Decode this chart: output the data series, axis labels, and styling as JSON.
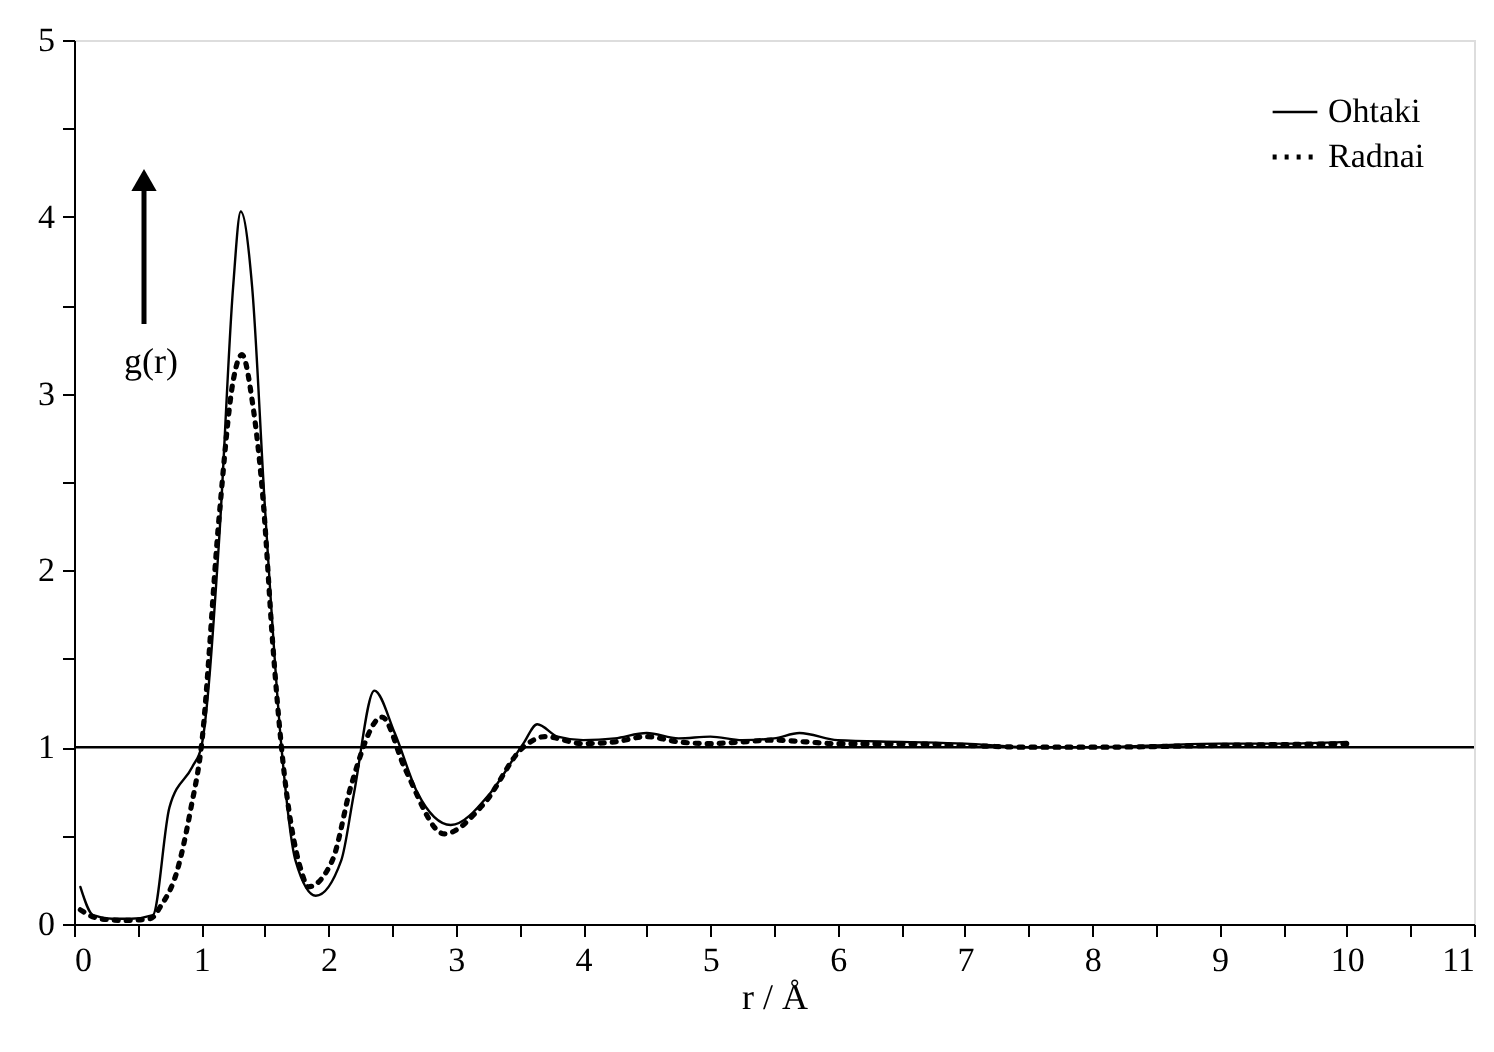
{
  "chart_data": {
    "type": "line",
    "xlabel": "r / Å",
    "ylabel": "g(r)",
    "xlim": [
      0,
      11
    ],
    "ylim": [
      0,
      5
    ],
    "xticks": [
      0,
      {
        "value": 0.5,
        "label": null
      },
      1,
      {
        "value": 1.5,
        "label": null
      },
      2,
      {
        "value": 2.5,
        "label": null
      },
      3,
      {
        "value": 3.5,
        "label": null
      },
      4,
      {
        "value": 4.5,
        "label": null
      },
      5,
      {
        "value": 5.5,
        "label": null
      },
      6,
      {
        "value": 6.5,
        "label": null
      },
      7,
      {
        "value": 7.5,
        "label": null
      },
      8,
      {
        "value": 8.5,
        "label": null
      },
      9,
      {
        "value": 9.5,
        "label": null
      },
      10,
      {
        "value": 10.5,
        "label": null
      },
      11
    ],
    "yticks": [
      0,
      {
        "value": 0.5,
        "label": null
      },
      1,
      {
        "value": 1.5,
        "label": null
      },
      2,
      {
        "value": 2.5,
        "label": null
      },
      3,
      {
        "value": 3.5,
        "label": null
      },
      4,
      {
        "value": 4.5,
        "label": null
      },
      5
    ],
    "grid": false,
    "legend": "top right",
    "marker": "none",
    "ref_lines": [
      {
        "axis": "y",
        "value": 1,
        "color": "#000000",
        "line_style": "solid"
      }
    ],
    "series": [
      {
        "name": "Ohtaki",
        "color": "#000000",
        "line_style": "solid",
        "x": [
          0.05,
          0.15,
          0.3,
          0.45,
          0.62,
          0.75,
          0.93,
          1.0,
          1.14,
          1.25,
          1.31,
          1.4,
          1.5,
          1.63,
          1.74,
          1.9,
          2.1,
          2.2,
          2.36,
          2.52,
          2.7,
          2.96,
          3.27,
          3.53,
          3.64,
          3.8,
          4.0,
          4.25,
          4.5,
          4.75,
          5.0,
          5.25,
          5.5,
          5.7,
          6.0,
          6.5,
          7.0,
          7.5,
          8.0,
          8.5,
          9.0,
          9.5,
          10.0
        ],
        "values": [
          0.21,
          0.05,
          0.03,
          0.03,
          0.05,
          0.66,
          0.89,
          1.0,
          2.17,
          3.6,
          4.03,
          3.6,
          2.36,
          1.0,
          0.36,
          0.16,
          0.36,
          0.74,
          1.32,
          1.08,
          0.74,
          0.56,
          0.74,
          1.02,
          1.13,
          1.06,
          1.04,
          1.05,
          1.08,
          1.05,
          1.06,
          1.04,
          1.05,
          1.08,
          1.04,
          1.03,
          1.02,
          1.0,
          1.0,
          1.01,
          1.02,
          1.02,
          1.03
        ]
      },
      {
        "name": "Radnai",
        "color": "#000000",
        "line_style": "dotted",
        "x": [
          0.05,
          0.2,
          0.4,
          0.6,
          0.68,
          0.81,
          0.92,
          1.0,
          1.14,
          1.25,
          1.32,
          1.4,
          1.49,
          1.56,
          1.63,
          1.79,
          1.84,
          2.03,
          2.18,
          2.42,
          2.6,
          2.91,
          3.22,
          3.53,
          3.7,
          4.0,
          4.25,
          4.5,
          4.75,
          5.0,
          5.25,
          5.5,
          5.75,
          6.0,
          6.5,
          7.0,
          7.5,
          8.0,
          9.0,
          10.0
        ],
        "values": [
          0.08,
          0.03,
          0.02,
          0.03,
          0.1,
          0.3,
          0.66,
          1.0,
          2.3,
          3.07,
          3.22,
          2.96,
          2.36,
          1.6,
          1.0,
          0.29,
          0.21,
          0.36,
          0.79,
          1.17,
          0.88,
          0.51,
          0.68,
          1.0,
          1.06,
          1.02,
          1.03,
          1.06,
          1.03,
          1.02,
          1.03,
          1.04,
          1.03,
          1.02,
          1.02,
          1.01,
          1.0,
          1.0,
          1.01,
          1.02
        ]
      }
    ]
  }
}
